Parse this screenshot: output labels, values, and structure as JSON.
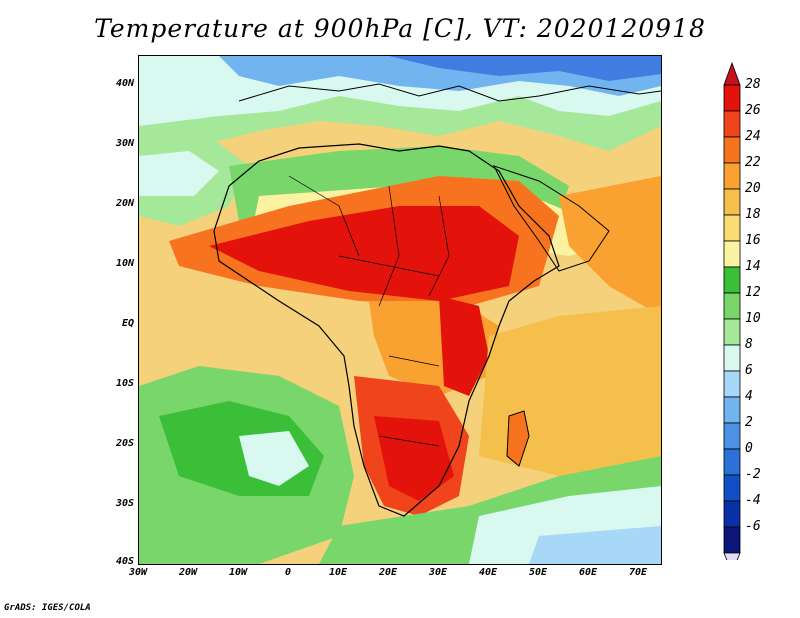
{
  "title": "Temperature at 900hPa [C], VT: 2020120918",
  "credit": "GrADS: IGES/COLA",
  "map": {
    "region": "Africa",
    "lat_labels": [
      "40N",
      "30N",
      "20N",
      "10N",
      "EQ",
      "10S",
      "20S",
      "30S",
      "40S"
    ],
    "lon_labels": [
      "30W",
      "20W",
      "10W",
      "0",
      "10E",
      "20E",
      "30E",
      "40E",
      "50E",
      "60E",
      "70E"
    ]
  },
  "colorbar": {
    "labels": [
      "28",
      "26",
      "24",
      "22",
      "20",
      "18",
      "16",
      "14",
      "12",
      "10",
      "8",
      "6",
      "4",
      "2",
      "0",
      "-2",
      "-4",
      "-6"
    ],
    "colors": [
      "#e3120b",
      "#f0441c",
      "#f7731f",
      "#f9a131",
      "#f4bf4a",
      "#fbdb74",
      "#fbf2a2",
      "#3cbf38",
      "#78d66a",
      "#a6e89a",
      "#d8f8f0",
      "#a8d8f8",
      "#72b4ef",
      "#4d92e6",
      "#2a72d8",
      "#1150c4",
      "#0a30a8",
      "#0c1578"
    ]
  },
  "colors": {
    "hot": "#d92a0c",
    "warm": "#f39424",
    "mild": "#f4d17a",
    "green": "#46c23e",
    "cool": "#b3e6f5",
    "cold": "#3f7ee0"
  }
}
